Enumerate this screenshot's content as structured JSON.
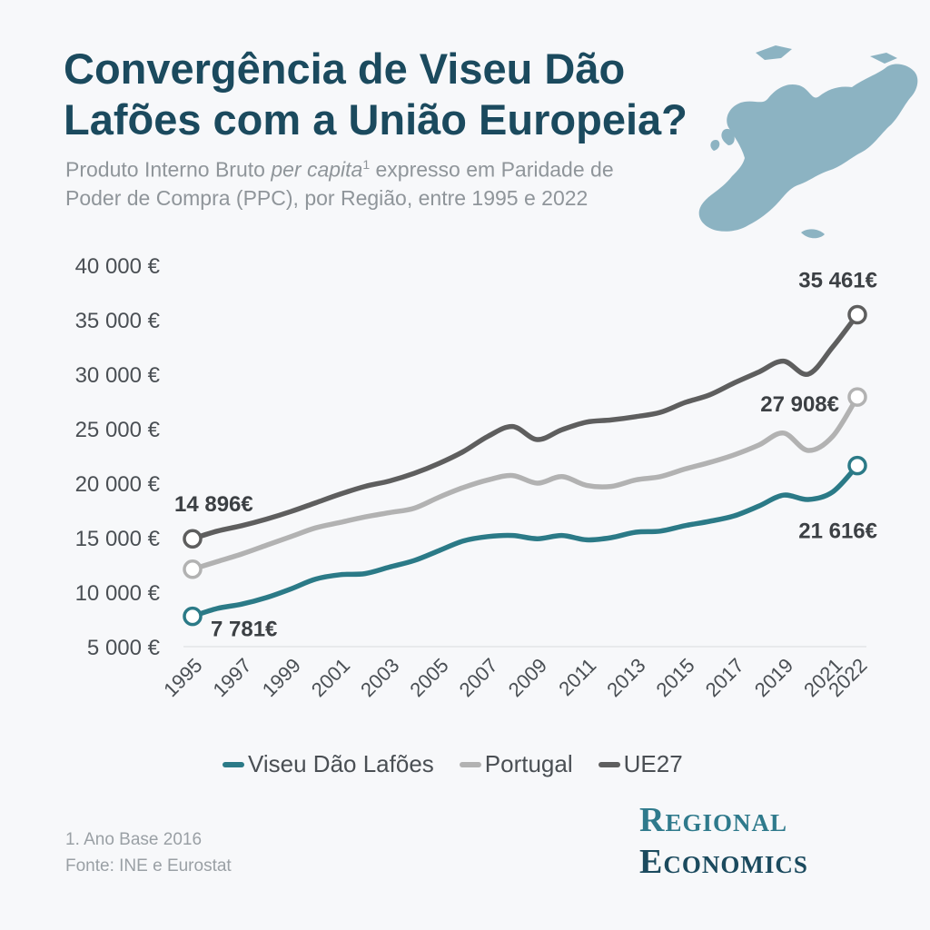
{
  "header": {
    "title": "Convergência de Viseu Dão Lafões com a União Europeia?",
    "subtitle_pre": "Produto Interno Bruto ",
    "subtitle_em": "per capita",
    "subtitle_sup": "1",
    "subtitle_post": " expresso em Paridade de Poder de Compra (PPC), por Região, entre 1995 e 2022"
  },
  "colors": {
    "viseu": "#2b7a87",
    "portugal": "#b2b2b2",
    "ue27": "#5e5e5e",
    "title": "#1b4a5e"
  },
  "chart_data": {
    "type": "line",
    "title": "Convergência de Viseu Dão Lafões com a União Europeia?",
    "xlabel": "",
    "ylabel": "",
    "ylim": [
      5000,
      40000
    ],
    "yticks": [
      40000,
      35000,
      30000,
      25000,
      20000,
      15000,
      10000,
      5000
    ],
    "ytick_labels": [
      "40 000 €",
      "35 000 €",
      "30 000 €",
      "25 000 €",
      "20 000 €",
      "15 000 €",
      "10 000 €",
      "5 000 €"
    ],
    "x": [
      1995,
      1996,
      1997,
      1998,
      1999,
      2000,
      2001,
      2002,
      2003,
      2004,
      2005,
      2006,
      2007,
      2008,
      2009,
      2010,
      2011,
      2012,
      2013,
      2014,
      2015,
      2016,
      2017,
      2018,
      2019,
      2020,
      2021,
      2022
    ],
    "xtick_labels": [
      "1995",
      "1997",
      "1999",
      "2001",
      "2003",
      "2005",
      "2007",
      "2009",
      "2011",
      "2013",
      "2015",
      "2017",
      "2019",
      "2021",
      "2022"
    ],
    "series": [
      {
        "name": "Viseu Dão Lafões",
        "color": "#2b7a87",
        "values": [
          7781,
          8500,
          8900,
          9500,
          10300,
          11200,
          11600,
          11700,
          12300,
          12900,
          13800,
          14700,
          15100,
          15200,
          14900,
          15200,
          14800,
          15000,
          15500,
          15600,
          16100,
          16500,
          17000,
          17900,
          18900,
          18500,
          19200,
          21616
        ]
      },
      {
        "name": "Portugal",
        "color": "#b2b2b2",
        "values": [
          12100,
          12800,
          13500,
          14300,
          15100,
          15900,
          16400,
          16900,
          17300,
          17700,
          18700,
          19600,
          20300,
          20700,
          20000,
          20600,
          19800,
          19700,
          20300,
          20600,
          21300,
          21900,
          22600,
          23500,
          24600,
          23000,
          24300,
          27908
        ]
      },
      {
        "name": "UE27",
        "color": "#5e5e5e",
        "values": [
          14896,
          15600,
          16100,
          16700,
          17400,
          18200,
          19000,
          19700,
          20200,
          20900,
          21800,
          22900,
          24300,
          25200,
          24000,
          24900,
          25600,
          25800,
          26100,
          26500,
          27400,
          28100,
          29200,
          30200,
          31200,
          30000,
          32500,
          35461
        ]
      }
    ],
    "annotations": [
      {
        "series": "UE27",
        "year": 1995,
        "text": "14 896€"
      },
      {
        "series": "Viseu Dão Lafões",
        "year": 1995,
        "text": "7 781€"
      },
      {
        "series": "UE27",
        "year": 2022,
        "text": "35 461€"
      },
      {
        "series": "Portugal",
        "year": 2022,
        "text": "27 908€"
      },
      {
        "series": "Viseu Dão Lafões",
        "year": 2022,
        "text": "21 616€"
      }
    ]
  },
  "legend": [
    {
      "label": "Viseu Dão Lafões",
      "color": "#2b7a87"
    },
    {
      "label": "Portugal",
      "color": "#b2b2b2"
    },
    {
      "label": "UE27",
      "color": "#5e5e5e"
    }
  ],
  "footnote": {
    "line1": "1. Ano Base 2016",
    "line2": "Fonte: INE e Eurostat"
  },
  "brand": {
    "line1": "Regional",
    "line2": "Economics"
  },
  "map_icon": "europe-map-icon"
}
